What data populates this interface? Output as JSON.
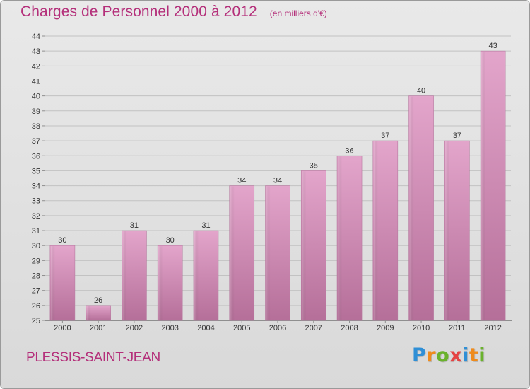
{
  "header": {
    "title": "Charges de Personnel 2000 à 2012",
    "subtitle": "(en milliers d'€)"
  },
  "footer": {
    "place": "PLESSIS-SAINT-JEAN",
    "logo": "Proxiti"
  },
  "colors": {
    "title": "#b42f7a",
    "bar_top": "#e3a5cb",
    "bar_bottom": "#b56f99"
  },
  "chart_data": {
    "type": "bar",
    "title": "Charges de Personnel 2000 à 2012",
    "subtitle": "(en milliers d'€)",
    "categories": [
      "2000",
      "2001",
      "2002",
      "2003",
      "2004",
      "2005",
      "2006",
      "2007",
      "2008",
      "2009",
      "2010",
      "2011",
      "2012"
    ],
    "values": [
      30,
      26,
      31,
      30,
      31,
      34,
      34,
      35,
      36,
      37,
      40,
      37,
      43
    ],
    "data_labels": [
      "30",
      "26",
      "31",
      "30",
      "31",
      "34",
      "34",
      "35",
      "36",
      "37",
      "40",
      "37",
      "43"
    ],
    "ylim": [
      25,
      44
    ],
    "yticks": [
      25,
      26,
      27,
      28,
      29,
      30,
      31,
      32,
      33,
      34,
      35,
      36,
      37,
      38,
      39,
      40,
      41,
      42,
      43,
      44
    ],
    "grid": true
  }
}
